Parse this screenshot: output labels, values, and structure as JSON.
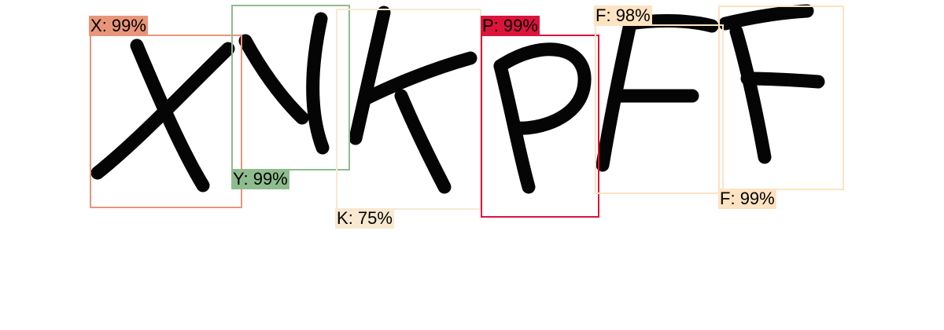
{
  "detections": [
    {
      "label": "X",
      "confidence": "99%",
      "color": "#e8957a"
    },
    {
      "label": "Y",
      "confidence": "99%",
      "color": "#8fbc8f"
    },
    {
      "label": "K",
      "confidence": "75%",
      "color": "#f8e8d0"
    },
    {
      "label": "P",
      "confidence": "99%",
      "color": "#dc143c"
    },
    {
      "label": "F",
      "confidence": "98%",
      "color": "#fde3c2"
    },
    {
      "label": "F",
      "confidence": "99%",
      "color": "#fde3c2"
    }
  ]
}
